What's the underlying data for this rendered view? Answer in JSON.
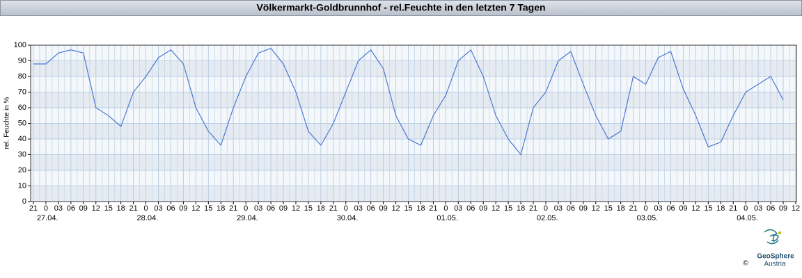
{
  "chart_data": {
    "type": "line",
    "title": "Völkermarkt-Goldbrunnhof - rel.Feuchte in den letzten 7 Tagen",
    "y_label": "rel. Feuchte in %",
    "categories": [
      "21",
      "0",
      "03",
      "06",
      "09",
      "12",
      "15",
      "18",
      "21",
      "0",
      "03",
      "06",
      "09",
      "12",
      "15",
      "18",
      "21",
      "0",
      "03",
      "06",
      "09",
      "12",
      "15",
      "18",
      "21",
      "0",
      "03",
      "06",
      "09",
      "12",
      "15",
      "18",
      "21",
      "0",
      "03",
      "06",
      "09",
      "12",
      "15",
      "18",
      "21",
      "0",
      "03",
      "06",
      "09",
      "12",
      "15",
      "18",
      "21",
      "0",
      "03",
      "06",
      "09",
      "12",
      "15",
      "18",
      "21",
      "0",
      "03",
      "06",
      "09",
      "12"
    ],
    "dates": [
      null,
      "27.04.",
      null,
      null,
      null,
      null,
      null,
      null,
      null,
      "28.04.",
      null,
      null,
      null,
      null,
      null,
      null,
      null,
      "29.04.",
      null,
      null,
      null,
      null,
      null,
      null,
      null,
      "30.04.",
      null,
      null,
      null,
      null,
      null,
      null,
      null,
      "01.05.",
      null,
      null,
      null,
      null,
      null,
      null,
      null,
      "02.05.",
      null,
      null,
      null,
      null,
      null,
      null,
      null,
      "03.05.",
      null,
      null,
      null,
      null,
      null,
      null,
      null,
      "04.05.",
      null,
      null,
      null,
      null
    ],
    "values": [
      88,
      88,
      95,
      97,
      95,
      60,
      55,
      48,
      70,
      80,
      92,
      97,
      88,
      60,
      45,
      36,
      60,
      80,
      95,
      98,
      88,
      70,
      45,
      36,
      50,
      70,
      90,
      97,
      85,
      55,
      40,
      36,
      55,
      68,
      90,
      97,
      80,
      55,
      40,
      30,
      60,
      70,
      90,
      96,
      75,
      55,
      40,
      45,
      80,
      75,
      92,
      96,
      72,
      55,
      35,
      38,
      55,
      70,
      75,
      80,
      65,
      null
    ],
    "color": "#4a78d4",
    "ylim": [
      0,
      100
    ],
    "yticks": [
      0,
      10,
      20,
      30,
      40,
      50,
      60,
      70,
      80,
      90,
      100
    ],
    "grid": true,
    "logo": {
      "name": "GeoSphere",
      "sub": "Austria",
      "copyright": "©"
    }
  }
}
